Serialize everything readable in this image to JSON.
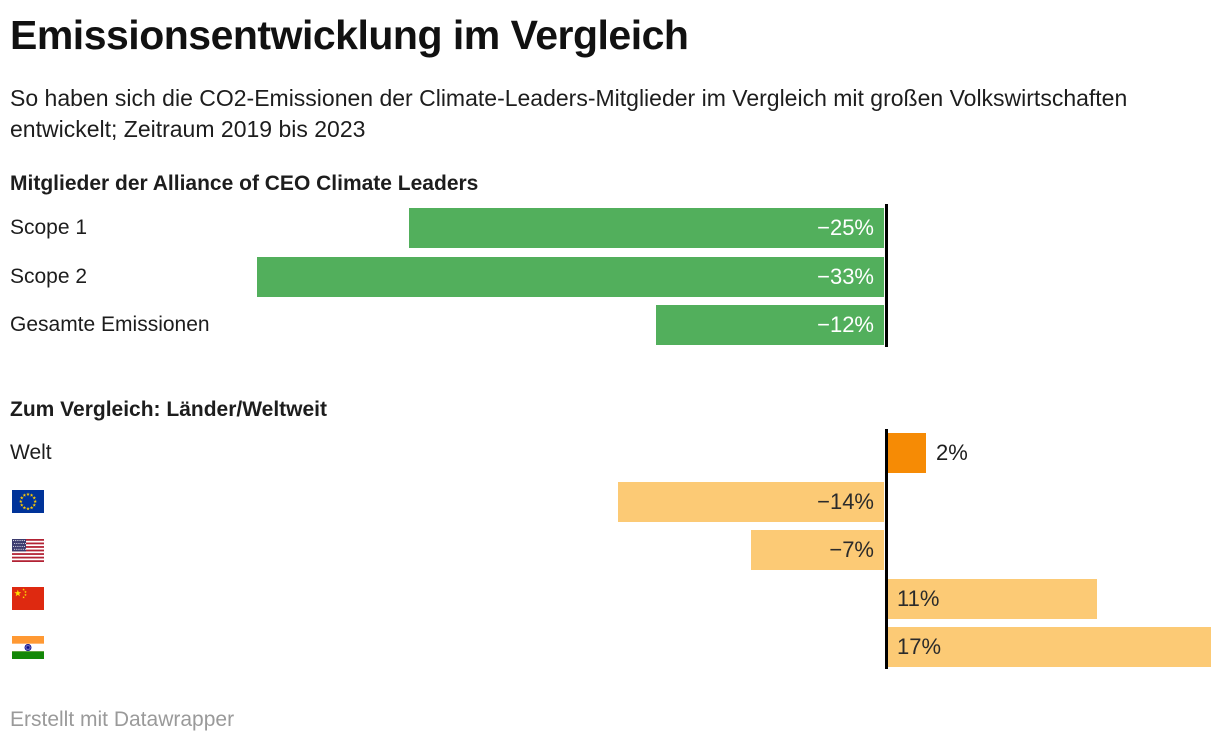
{
  "header": {
    "title": "Emissionsentwicklung im Vergleich",
    "subtitle": "So haben sich die CO2-Emissionen der Climate-Leaders-Mitglieder im Vergleich mit großen Volkswirtschaften entwickelt; Zeitraum 2019 bis 2023"
  },
  "footer": {
    "attribution": "Erstellt mit Datawrapper"
  },
  "colors": {
    "green_bar": "#52af5c",
    "light_orange_bar": "#fcca75",
    "dark_orange_bar": "#f68b05",
    "green_value_label": "#ffffff",
    "orange_value_label": "#2b2b2b",
    "axis_line": "#000000",
    "text": "#1d1d1d",
    "attribution_text": "#9a9a9a"
  },
  "chart_data": {
    "type": "bar",
    "orientation": "horizontal",
    "unit": "%",
    "axis": {
      "zero_line": true,
      "value_range_shown": [
        -33,
        17
      ]
    },
    "groups": [
      {
        "label": "Mitglieder der Alliance of CEO Climate Leaders",
        "bar_color": "#52af5c",
        "value_label_color": "#ffffff",
        "rows": [
          {
            "label": "Scope 1",
            "value": -25,
            "display": "−25%"
          },
          {
            "label": "Scope 2",
            "value": -33,
            "display": "−33%"
          },
          {
            "label": "Gesamte Emissionen",
            "value": -12,
            "display": "−12%"
          }
        ]
      },
      {
        "label": "Zum Vergleich: Länder/Weltweit",
        "bar_color": "#fcca75",
        "value_label_color": "#2b2b2b",
        "rows": [
          {
            "label": "Welt",
            "value": 2,
            "display": "2%",
            "bar_color": "#f68b05",
            "label_outside": true,
            "outside_label_color": "#1d1d1d"
          },
          {
            "label": "",
            "flag": "eu",
            "value": -14,
            "display": "−14%"
          },
          {
            "label": "",
            "flag": "us",
            "value": -7,
            "display": "−7%"
          },
          {
            "label": "",
            "flag": "china",
            "value": 11,
            "display": "11%"
          },
          {
            "label": "",
            "flag": "india",
            "value": 17,
            "display": "17%"
          }
        ]
      }
    ]
  }
}
